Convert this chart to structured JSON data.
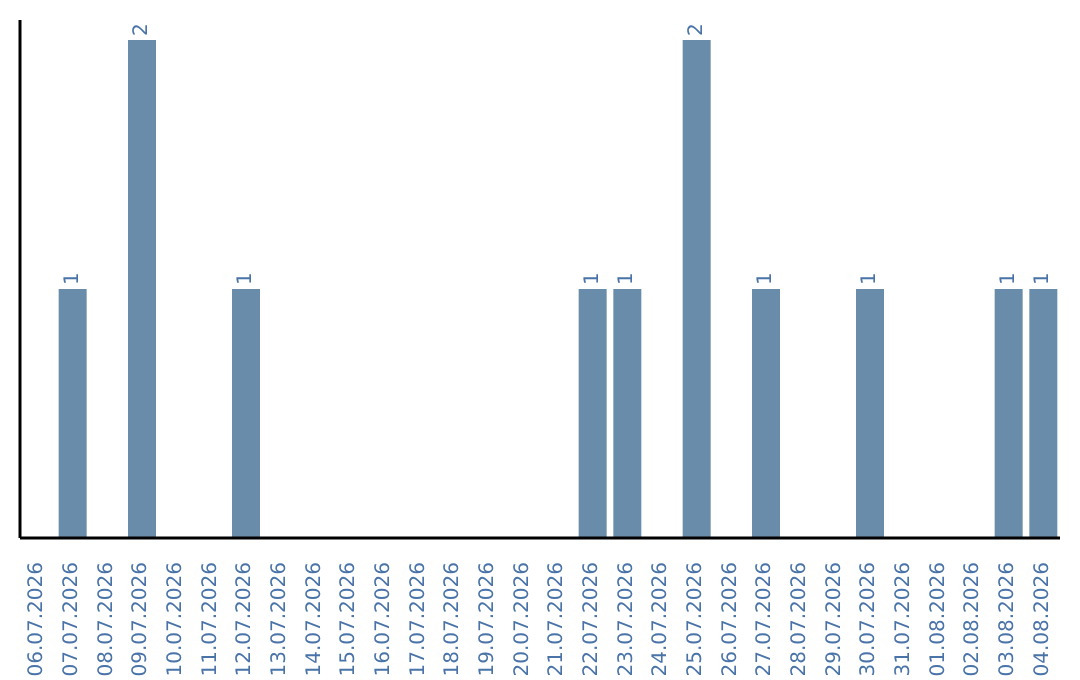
{
  "chart_data": {
    "type": "bar",
    "categories": [
      "06.07.2026",
      "07.07.2026",
      "08.07.2026",
      "09.07.2026",
      "10.07.2026",
      "11.07.2026",
      "12.07.2026",
      "13.07.2026",
      "14.07.2026",
      "15.07.2026",
      "16.07.2026",
      "17.07.2026",
      "18.07.2026",
      "19.07.2026",
      "20.07.2026",
      "21.07.2026",
      "22.07.2026",
      "23.07.2026",
      "24.07.2026",
      "25.07.2026",
      "26.07.2026",
      "27.07.2026",
      "28.07.2026",
      "29.07.2026",
      "30.07.2026",
      "31.07.2026",
      "01.08.2026",
      "02.08.2026",
      "03.08.2026",
      "04.08.2026"
    ],
    "values": [
      0,
      1,
      0,
      2,
      0,
      0,
      1,
      0,
      0,
      0,
      0,
      0,
      0,
      0,
      0,
      0,
      1,
      1,
      0,
      2,
      0,
      1,
      0,
      0,
      1,
      0,
      0,
      0,
      1,
      1
    ],
    "value_labels": [
      null,
      "1",
      null,
      "2",
      null,
      null,
      "1",
      null,
      null,
      null,
      null,
      null,
      null,
      null,
      null,
      null,
      "1",
      "1",
      null,
      "2",
      null,
      "1",
      null,
      null,
      "1",
      null,
      null,
      null,
      "1",
      "1"
    ],
    "color": "#6a8cab"
  }
}
